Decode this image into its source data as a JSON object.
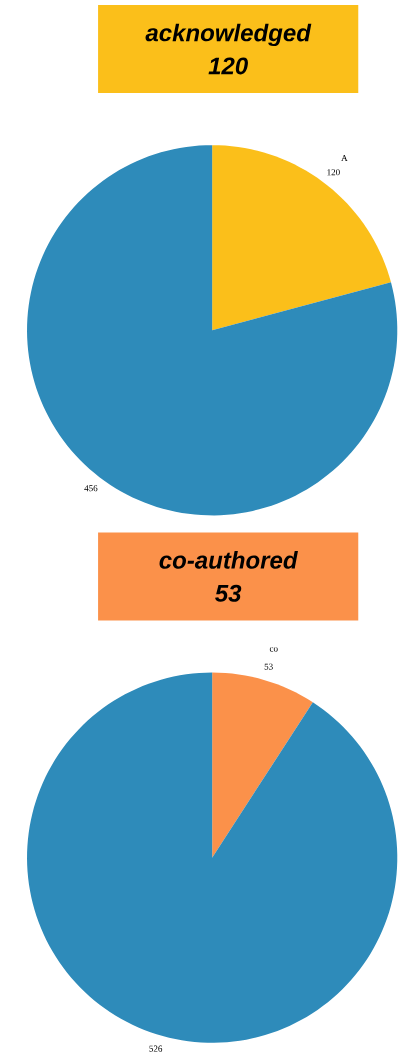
{
  "chart_data": [
    {
      "type": "pie",
      "title": "acknowledged",
      "subtitle": "120",
      "categories": [
        "A",
        null
      ],
      "values": [
        120,
        456
      ],
      "colors": [
        "#fbbf1a",
        "#2e8bba"
      ],
      "data_labels": true
    },
    {
      "type": "pie",
      "title": "co-authored",
      "subtitle": "53",
      "categories": [
        "co",
        null
      ],
      "values": [
        53,
        526
      ],
      "colors": [
        "#fb914a",
        "#2e8bba"
      ],
      "data_labels": true
    }
  ]
}
